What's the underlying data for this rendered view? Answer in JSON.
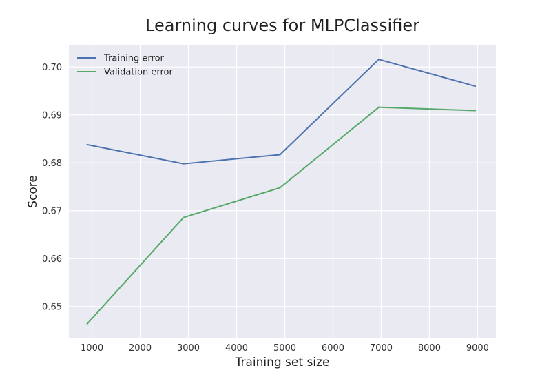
{
  "chart_data": {
    "type": "line",
    "title": "Learning curves for MLPClassifier",
    "xlabel": "Training set size",
    "ylabel": "Score",
    "xlim": [
      520,
      9380
    ],
    "ylim": [
      0.6435,
      0.7045
    ],
    "x_ticks": [
      1000,
      2000,
      3000,
      4000,
      5000,
      6000,
      7000,
      8000,
      9000
    ],
    "y_ticks": [
      0.65,
      0.66,
      0.67,
      0.68,
      0.69,
      0.7
    ],
    "x_tick_labels": [
      "1000",
      "2000",
      "3000",
      "4000",
      "5000",
      "6000",
      "7000",
      "8000",
      "9000"
    ],
    "y_tick_labels": [
      "0.65",
      "0.66",
      "0.67",
      "0.68",
      "0.69",
      "0.70"
    ],
    "grid": true,
    "legend_position": "top-left",
    "x": [
      900,
      2900,
      4900,
      6950,
      8950
    ],
    "series": [
      {
        "name": "Training error",
        "color": "#4c72b0",
        "values": [
          0.6838,
          0.6798,
          0.6817,
          0.7016,
          0.696
        ]
      },
      {
        "name": "Validation error",
        "color": "#55a868",
        "values": [
          0.6464,
          0.6686,
          0.6748,
          0.6916,
          0.6909
        ]
      }
    ]
  }
}
